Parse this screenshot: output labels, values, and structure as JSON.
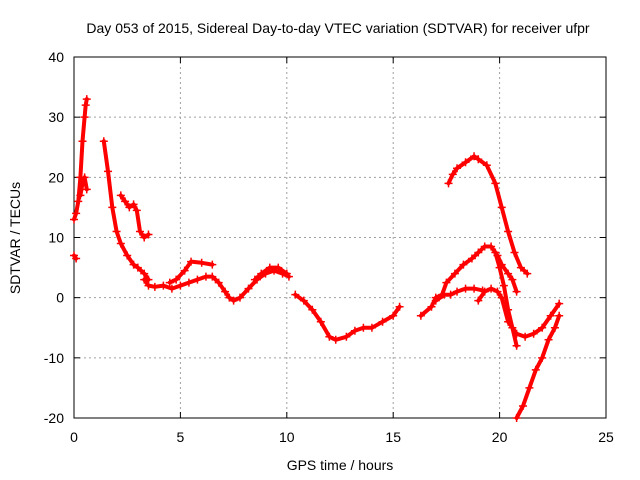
{
  "chart_data": {
    "type": "scatter",
    "title": "Day 053 of 2015, Sidereal Day-to-day VTEC variation (SDTVAR) for receiver ufpr",
    "xlabel": "GPS time / hours",
    "ylabel": "SDTVAR / TECUs",
    "xlim": [
      0,
      25
    ],
    "ylim": [
      -20,
      40
    ],
    "xticks": [
      0,
      5,
      10,
      15,
      20,
      25
    ],
    "yticks": [
      -20,
      -10,
      0,
      10,
      20,
      30,
      40
    ],
    "grid": true,
    "marker": "+",
    "color": "#ff0000",
    "series": [
      {
        "x": [
          0.0,
          0.1
        ],
        "y": [
          7.0,
          6.5
        ]
      },
      {
        "x": [
          0.0,
          0.1,
          0.2,
          0.3,
          0.4,
          0.5,
          0.55,
          0.6
        ],
        "y": [
          13,
          14,
          16,
          20,
          26,
          30,
          32,
          33
        ]
      },
      {
        "x": [
          0.3,
          0.4,
          0.5,
          0.6
        ],
        "y": [
          17,
          19,
          20,
          18
        ]
      },
      {
        "x": [
          1.4,
          1.6,
          1.8,
          2.0,
          2.2,
          2.5,
          2.8,
          3.0,
          3.3,
          3.5
        ],
        "y": [
          26,
          21,
          15,
          11,
          9,
          7,
          5.5,
          5,
          4,
          3
        ]
      },
      {
        "x": [
          3.3,
          3.5,
          3.8,
          4.2,
          4.6,
          5.0,
          5.4,
          5.8,
          6.2,
          6.5,
          6.8,
          7.1,
          7.3,
          7.5,
          7.8,
          8.2,
          8.6,
          9.0,
          9.4,
          9.8,
          10.1
        ],
        "y": [
          3,
          2,
          1.8,
          2,
          1.5,
          2,
          2.5,
          3,
          3.5,
          3.5,
          2.5,
          1,
          0,
          -0.5,
          0,
          1.5,
          3,
          4,
          4.5,
          4,
          3.5
        ]
      },
      {
        "x": [
          2.2,
          2.4,
          2.6,
          2.8,
          2.95,
          3.1,
          3.3,
          3.5
        ],
        "y": [
          17,
          16,
          15,
          15.5,
          14.5,
          11,
          10,
          10.5
        ]
      },
      {
        "x": [
          4.5,
          4.8,
          5.2,
          5.5,
          6.0,
          6.5
        ],
        "y": [
          2.5,
          3,
          4.5,
          6,
          5.8,
          5.5
        ]
      },
      {
        "x": [
          8.5,
          8.8,
          9.2,
          9.6,
          10.0
        ],
        "y": [
          3,
          4,
          5,
          5,
          4
        ]
      },
      {
        "x": [
          10.4,
          10.8,
          11.2,
          11.6,
          12.0,
          12.3,
          12.8,
          13.2,
          13.6,
          14.0,
          14.5,
          15.0,
          15.3
        ],
        "y": [
          0.5,
          -0.5,
          -2,
          -4,
          -6.5,
          -7,
          -6.5,
          -5.5,
          -5,
          -5,
          -4,
          -3,
          -1.5
        ]
      },
      {
        "x": [
          16.3,
          16.8,
          17.0,
          17.3,
          17.5,
          17.9,
          18.3,
          18.7,
          19.0,
          19.3,
          19.6,
          19.9,
          20.1,
          20.4,
          20.6,
          20.8
        ],
        "y": [
          -3,
          -1.5,
          0,
          0.5,
          2.5,
          4,
          5.5,
          6.5,
          7.5,
          8.5,
          8.5,
          7,
          5.5,
          4,
          3,
          1
        ]
      },
      {
        "x": [
          17.0,
          17.4,
          17.7,
          18.0,
          18.4,
          18.8,
          19.2
        ],
        "y": [
          -0.5,
          0.5,
          0.5,
          1,
          1.5,
          1.5,
          1.2
        ]
      },
      {
        "x": [
          17.6,
          17.8,
          18.0,
          18.4,
          18.8,
          19.0,
          19.4,
          19.8,
          20.1,
          20.4,
          20.7,
          21.0,
          21.3
        ],
        "y": [
          19,
          20.5,
          21.5,
          22.5,
          23.5,
          23,
          22,
          19,
          15,
          11,
          7.5,
          5,
          4
        ]
      },
      {
        "x": [
          19.0,
          19.3,
          19.6,
          19.9,
          20.1,
          20.4,
          20.8,
          21.2,
          21.6,
          22.0,
          22.4,
          22.8
        ],
        "y": [
          -0.5,
          1,
          1.5,
          1,
          0,
          -4,
          -6,
          -6.5,
          -6,
          -5,
          -3,
          -1
        ]
      },
      {
        "x": [
          19.8,
          20.0,
          20.2,
          20.4,
          20.6,
          20.8
        ],
        "y": [
          7.5,
          5,
          2,
          -2,
          -5,
          -8
        ]
      },
      {
        "x": [
          20.8,
          21.1,
          21.4,
          21.7,
          22.0,
          22.3,
          22.6,
          22.8
        ],
        "y": [
          -20,
          -18,
          -15,
          -12,
          -10,
          -7,
          -5,
          -3
        ]
      }
    ]
  }
}
